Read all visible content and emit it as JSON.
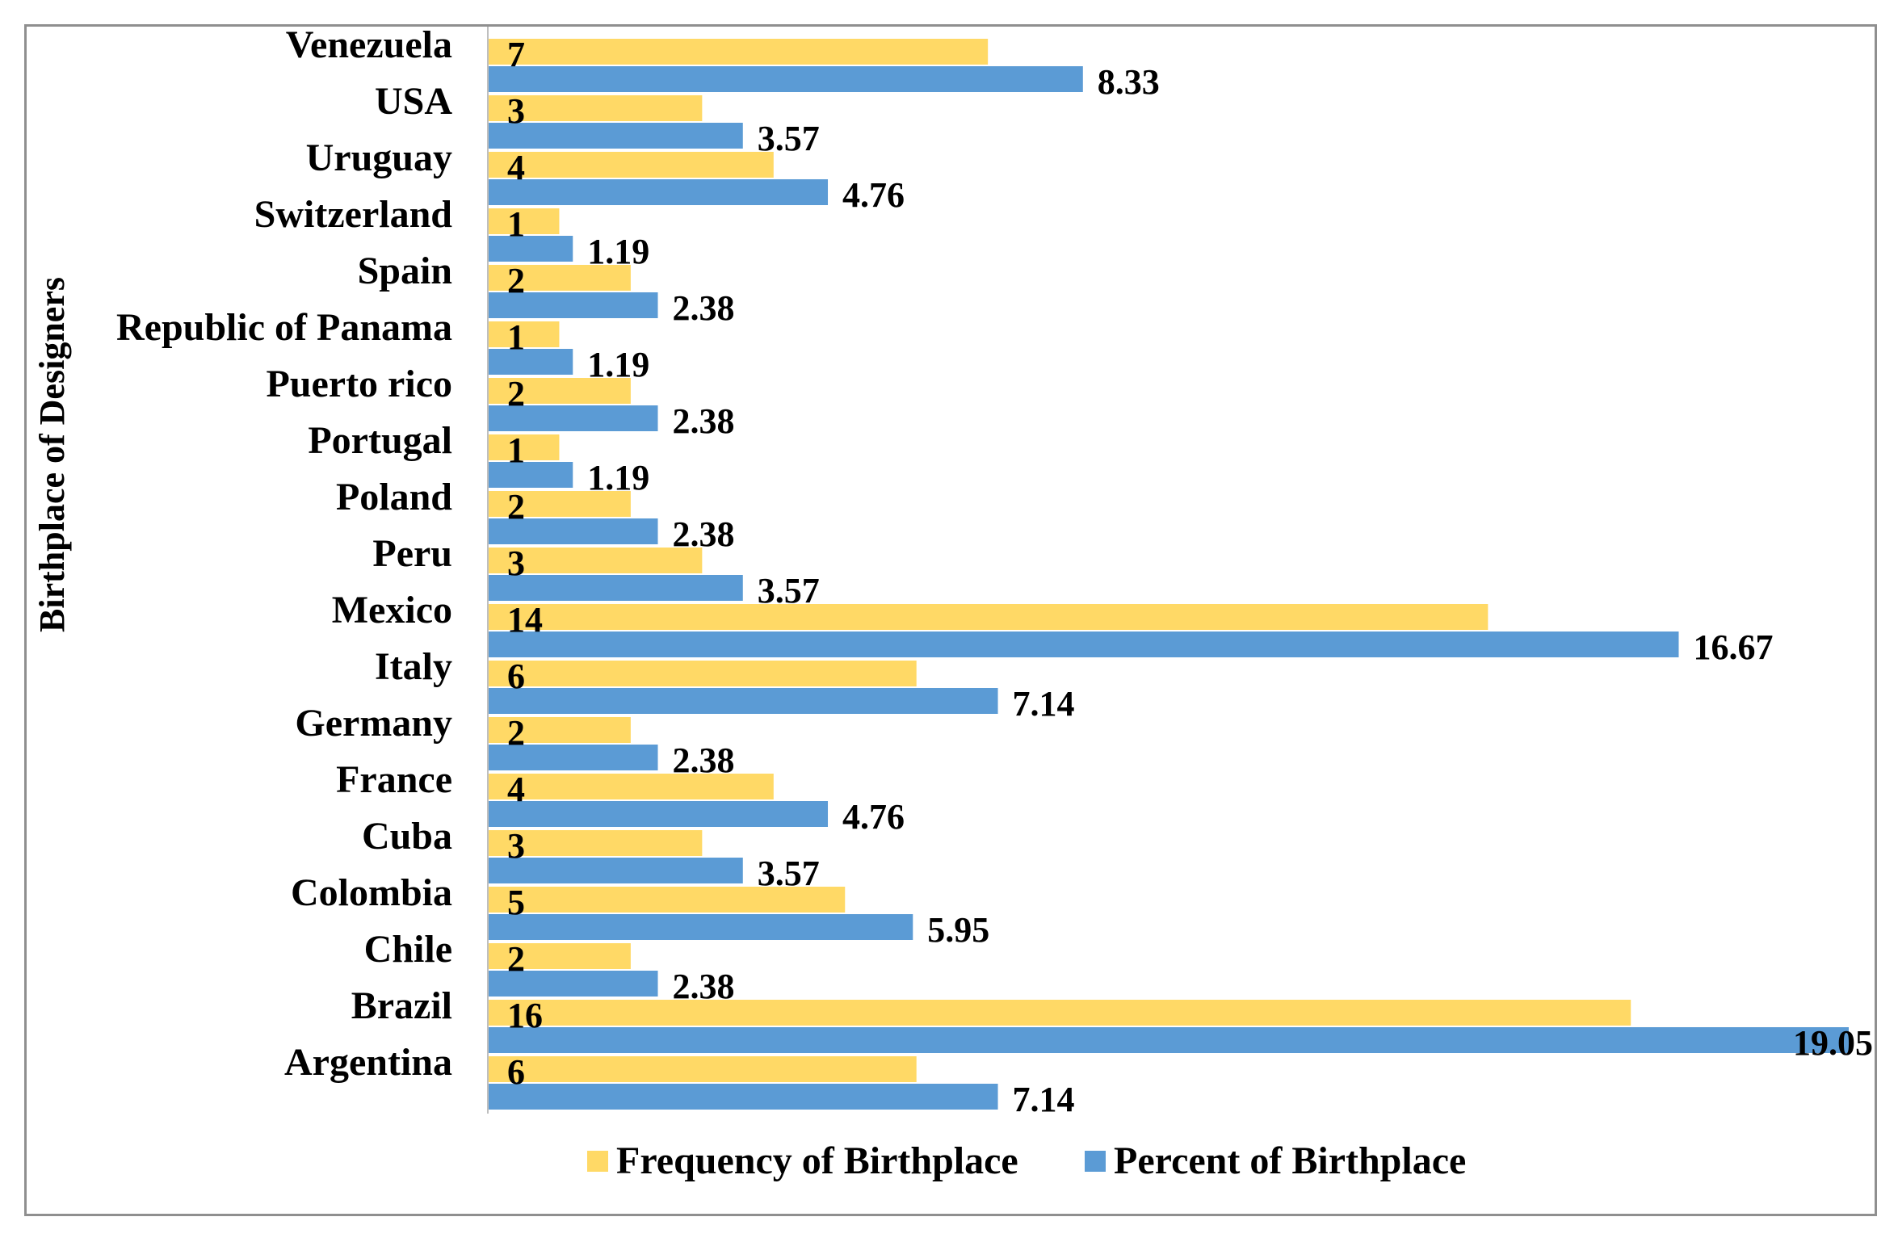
{
  "chart_data": {
    "type": "bar",
    "orientation": "horizontal",
    "title": "",
    "xlabel": "",
    "ylabel": "Birthplace of Designers",
    "categories": [
      "Venezuela",
      "USA",
      "Uruguay",
      "Switzerland",
      "Spain",
      "Republic of Panama",
      "Puerto rico",
      "Portugal",
      "Poland",
      "Peru",
      "Mexico",
      "Italy",
      "Germany",
      "France",
      "Cuba",
      "Colombia",
      "Chile",
      "Brazil",
      "Argentina"
    ],
    "series": [
      {
        "name": "Frequency of Birthplace",
        "color": "#FFD966",
        "values": [
          7,
          3,
          4,
          1,
          2,
          1,
          2,
          1,
          2,
          3,
          14,
          6,
          2,
          4,
          3,
          5,
          2,
          16,
          6
        ]
      },
      {
        "name": "Percent of Birthplace",
        "color": "#5B9BD5",
        "values": [
          8.33,
          3.57,
          4.76,
          1.19,
          2.38,
          1.19,
          2.38,
          1.19,
          2.38,
          3.57,
          16.67,
          7.14,
          2.38,
          4.76,
          3.57,
          5.95,
          2.38,
          19.05,
          7.14
        ]
      }
    ],
    "xlim": [
      0,
      19.05
    ],
    "grid": false,
    "legend_position": "bottom"
  }
}
